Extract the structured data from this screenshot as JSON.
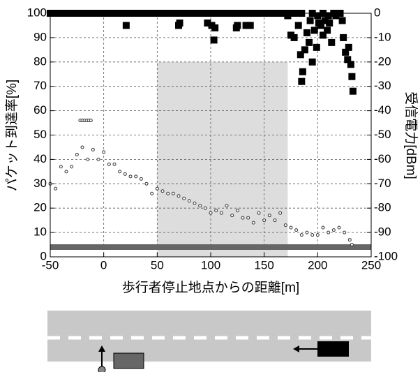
{
  "chart_data": {
    "type": "scatter",
    "xlabel": "歩行者停止地点からの距離[m]",
    "ylabel": "パケット到達率[%]",
    "y2label": "受信電力[dBm]",
    "xlim": [
      -50,
      250
    ],
    "xticks": [
      -50,
      0,
      50,
      100,
      150,
      200,
      250
    ],
    "ylim": [
      0,
      100
    ],
    "yticks": [
      0,
      10,
      20,
      30,
      40,
      50,
      60,
      70,
      80,
      90,
      100
    ],
    "y2lim": [
      -100,
      0
    ],
    "y2ticks": [
      -100,
      -90,
      -80,
      -70,
      -60,
      -50,
      -40,
      -30,
      -20,
      -10,
      0
    ],
    "grid": true,
    "highlight": {
      "x": [
        50,
        172
      ],
      "y": [
        0,
        80
      ],
      "color": "#dddddd"
    },
    "floor": {
      "axis": "y2",
      "value": -96,
      "color": "#666666"
    },
    "series": [
      {
        "marker": "square",
        "color": "#000000",
        "x": [
          -50,
          -45,
          -40,
          -35,
          -30,
          -25,
          -20,
          -15,
          -10,
          -5,
          0,
          5,
          10,
          15,
          20,
          25,
          30,
          35,
          40,
          45,
          50,
          55,
          60,
          65,
          70,
          75,
          80,
          85,
          90,
          95,
          100,
          105,
          110,
          115,
          120,
          125,
          130,
          135,
          140,
          145,
          150,
          155,
          160,
          165,
          170,
          175,
          180,
          185,
          195,
          205,
          200,
          210,
          21,
          70,
          71,
          97,
          101,
          103,
          104,
          124,
          125,
          133,
          135,
          137,
          172,
          175,
          178,
          182,
          184,
          185,
          186,
          188,
          190,
          192,
          193,
          195,
          197,
          199,
          201,
          203,
          205,
          207,
          209,
          211,
          213,
          215,
          217,
          219,
          221,
          223,
          224,
          226,
          228,
          229,
          231,
          232,
          233
        ],
        "values": [
          100,
          100,
          100,
          100,
          100,
          100,
          100,
          100,
          100,
          100,
          100,
          100,
          100,
          100,
          100,
          100,
          100,
          100,
          100,
          100,
          100,
          100,
          100,
          100,
          100,
          100,
          100,
          100,
          100,
          100,
          100,
          100,
          100,
          100,
          100,
          100,
          100,
          100,
          100,
          100,
          100,
          100,
          100,
          100,
          100,
          100,
          100,
          100,
          100,
          100,
          99,
          99,
          95,
          95,
          96,
          96,
          95,
          89,
          94,
          94,
          95,
          95,
          95,
          95,
          99,
          91,
          90,
          95,
          83,
          72,
          76,
          85,
          92,
          88,
          97,
          80,
          93,
          86,
          96,
          95,
          91,
          97,
          93,
          96,
          88,
          100,
          99,
          100,
          100,
          97,
          90,
          84,
          81,
          86,
          79,
          74,
          68
        ]
      },
      {
        "marker": "circle",
        "color": "#333333",
        "axis": "y2",
        "x": [
          -50,
          -45,
          -40,
          -35,
          -30,
          -25,
          -20,
          -15,
          -10,
          -5,
          0,
          5,
          10,
          15,
          20,
          25,
          30,
          35,
          40,
          45,
          50,
          55,
          60,
          65,
          70,
          75,
          80,
          85,
          90,
          95,
          100,
          105,
          110,
          115,
          120,
          125,
          130,
          135,
          140,
          145,
          150,
          155,
          160,
          165,
          170,
          175,
          180,
          185,
          190,
          195,
          200,
          205,
          210,
          215,
          220,
          225,
          230,
          232,
          -22,
          -20,
          -18,
          -16,
          -14,
          -12
        ],
        "values": [
          -70,
          -72,
          -63,
          -65,
          -63,
          -58,
          -55,
          -60,
          -56,
          -60,
          -57,
          -62,
          -62,
          -65,
          -66,
          -67,
          -67,
          -68,
          -70,
          -74,
          -72,
          -73,
          -74,
          -74,
          -75,
          -76,
          -77,
          -78,
          -79,
          -80,
          -82,
          -81,
          -82,
          -79,
          -83,
          -81,
          -84,
          -84,
          -86,
          -82,
          -85,
          -83,
          -85,
          -82,
          -87,
          -88,
          -89,
          -91,
          -90,
          -91,
          -91,
          -88,
          -90,
          -89,
          -88,
          -90,
          -93,
          -95,
          -44,
          -44,
          -44,
          -44,
          -44,
          -44
        ]
      }
    ]
  }
}
